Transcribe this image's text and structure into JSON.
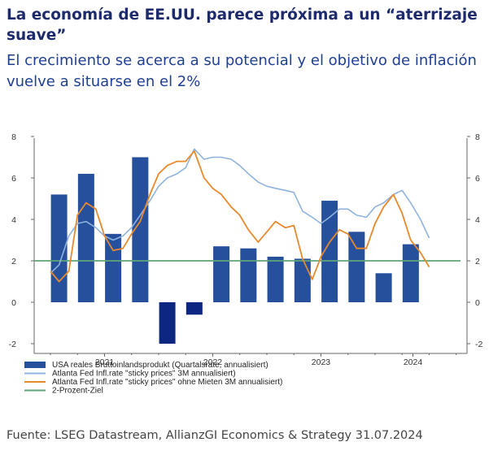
{
  "header": {
    "title": "La economía de EE.UU. parece próxima a un “aterrizaje suave”",
    "subtitle": "El crecimiento se acerca a su potencial y el objetivo de inflación vuelve a situarse en el 2%"
  },
  "footer": {
    "source": "Fuente: LSEG Datastream, AllianzGI Economics & Strategy 31.07.2024"
  },
  "colors": {
    "bars": "#264f9c",
    "bars_negative": "#0d2680",
    "light_line": "#8fb3dc",
    "orange_line": "#e9892b",
    "target_line": "#5da677",
    "axis": "#666666"
  },
  "chart_data": {
    "type": "bar",
    "title": "",
    "xlabel": "",
    "ylabel": "",
    "ylim": [
      -2.4,
      8
    ],
    "yticks": [
      "-2",
      "0",
      "2",
      "4",
      "6",
      "8"
    ],
    "ytick_values": [
      -2,
      0,
      2,
      4,
      6,
      8
    ],
    "xticks": [
      {
        "label": "2021",
        "t": 2021.25
      },
      {
        "label": "2022",
        "t": 2022.25
      },
      {
        "label": "2023",
        "t": 2023.25
      },
      {
        "label": "2024",
        "t": 2024.1
      }
    ],
    "xrange": [
      2020.6,
      2024.6
    ],
    "series": [
      {
        "name": "USA reales Bruttoinlandsprodukt (Quartalsrate, annualisiert)",
        "kind": "bar",
        "t": [
          2020.83,
          2021.08,
          2021.33,
          2021.58,
          2021.83,
          2022.08,
          2022.33,
          2022.58,
          2022.83,
          2023.08,
          2023.33,
          2023.58,
          2023.83,
          2024.08
        ],
        "values": [
          5.2,
          6.2,
          3.3,
          7.0,
          -2.0,
          -0.6,
          2.7,
          2.6,
          2.2,
          2.1,
          4.9,
          3.4,
          1.4,
          2.8
        ]
      },
      {
        "name": "Atlanta Fed Infl.rate \"sticky prices\" 3M annualisiert)",
        "kind": "line",
        "t": [
          2020.75,
          2020.83,
          2020.92,
          2021.0,
          2021.08,
          2021.17,
          2021.25,
          2021.33,
          2021.42,
          2021.5,
          2021.58,
          2021.67,
          2021.75,
          2021.83,
          2021.92,
          2022.0,
          2022.08,
          2022.17,
          2022.25,
          2022.33,
          2022.42,
          2022.5,
          2022.58,
          2022.67,
          2022.75,
          2022.83,
          2022.92,
          2023.0,
          2023.08,
          2023.17,
          2023.25,
          2023.33,
          2023.42,
          2023.5,
          2023.58,
          2023.67,
          2023.75,
          2023.83,
          2023.92,
          2024.0,
          2024.08,
          2024.17,
          2024.25
        ],
        "values": [
          1.4,
          1.8,
          3.2,
          3.8,
          3.9,
          3.6,
          3.2,
          3.0,
          3.2,
          3.6,
          4.2,
          4.9,
          5.6,
          6.0,
          6.2,
          6.5,
          7.4,
          6.9,
          7.0,
          7.0,
          6.9,
          6.6,
          6.2,
          5.8,
          5.6,
          5.5,
          5.4,
          5.3,
          4.4,
          4.1,
          3.8,
          4.1,
          4.5,
          4.5,
          4.2,
          4.1,
          4.6,
          4.8,
          5.2,
          5.4,
          4.8,
          4.0,
          3.1
        ]
      },
      {
        "name": "Atlanta Fed Infl.rate \"sticky prices\" ohne Mieten 3M annualisiert)",
        "kind": "line",
        "t": [
          2020.75,
          2020.83,
          2020.92,
          2021.0,
          2021.08,
          2021.17,
          2021.25,
          2021.33,
          2021.42,
          2021.5,
          2021.58,
          2021.67,
          2021.75,
          2021.83,
          2021.92,
          2022.0,
          2022.08,
          2022.17,
          2022.25,
          2022.33,
          2022.42,
          2022.5,
          2022.58,
          2022.67,
          2022.75,
          2022.83,
          2022.92,
          2023.0,
          2023.08,
          2023.17,
          2023.25,
          2023.33,
          2023.42,
          2023.5,
          2023.58,
          2023.67,
          2023.75,
          2023.83,
          2023.92,
          2024.0,
          2024.08,
          2024.17,
          2024.25
        ],
        "values": [
          1.5,
          1.0,
          1.5,
          4.2,
          4.8,
          4.5,
          3.2,
          2.5,
          2.6,
          3.3,
          3.9,
          5.2,
          6.2,
          6.6,
          6.8,
          6.8,
          7.3,
          6.0,
          5.5,
          5.2,
          4.6,
          4.2,
          3.5,
          2.9,
          3.4,
          3.9,
          3.6,
          3.7,
          2.1,
          1.1,
          2.2,
          2.9,
          3.5,
          3.3,
          2.6,
          2.6,
          3.8,
          4.6,
          5.2,
          4.3,
          3.0,
          2.4,
          1.7
        ]
      },
      {
        "name": "2-Prozent-Ziel",
        "kind": "hline",
        "value": 2
      }
    ]
  }
}
